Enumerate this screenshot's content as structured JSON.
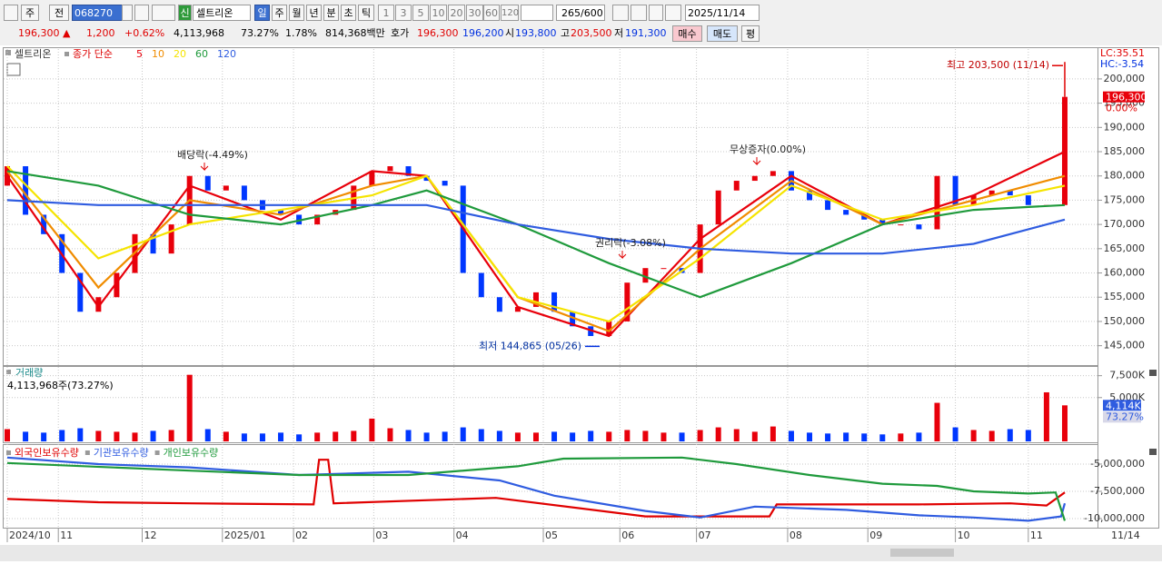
{
  "toolbar": {
    "market_buttons": [
      "주",
      "전"
    ],
    "code": "068270",
    "badge": "신",
    "name": "셀트리온",
    "period_buttons": [
      "일",
      "주",
      "월",
      "년",
      "분",
      "초",
      "틱"
    ],
    "intervals": [
      "1",
      "3",
      "5",
      "10",
      "20",
      "30",
      "60",
      "120"
    ],
    "count": "265",
    "max": "/600",
    "date": "2025/11/14"
  },
  "quote": {
    "price": "196,300",
    "arrow": "▲",
    "change": "1,200",
    "change_pct": "+0.62%",
    "volume": "4,113,968",
    "volume_ratio": "73.27%",
    "turnover": "1.78%",
    "amount": "814,368백만",
    "ask_label": "호가",
    "ask": "196,300",
    "bid": "196,200",
    "open_label": "시",
    "open": "193,800",
    "high_label": "고",
    "high": "203,500",
    "low_label": "저",
    "low": "191,300",
    "buy": "매수",
    "sell": "매도",
    "avg": "평"
  },
  "chart_data": [
    {
      "type": "candlestick",
      "name": "셀트리온",
      "ma_title": "종가 단순",
      "lc": "LC:35.51",
      "hc": "HC:-3.54",
      "xlim": [
        0,
        58.3
      ],
      "ylim": [
        141000,
        205600
      ],
      "grid": true,
      "yticks": [
        {
          "value": 145000,
          "label": "145,000"
        },
        {
          "value": 150000,
          "label": "150,000"
        },
        {
          "value": 155000,
          "label": "155,000"
        },
        {
          "value": 160000,
          "label": "160,000"
        },
        {
          "value": 165000,
          "label": "165,000"
        },
        {
          "value": 170000,
          "label": "170,000"
        },
        {
          "value": 175000,
          "label": "175,000"
        },
        {
          "value": 180000,
          "label": "180,000"
        },
        {
          "value": 185000,
          "label": "185,000"
        },
        {
          "value": 190000,
          "label": "190,000"
        },
        {
          "value": 195000,
          "label": "195,000"
        },
        {
          "value": 200000,
          "label": "200,000"
        }
      ],
      "color_up": "#e8000b",
      "color_down": "#0037ff",
      "open": [
        178000,
        182000,
        172000,
        168000,
        160000,
        152000,
        155000,
        160000,
        168000,
        164000,
        170000,
        180000,
        177000,
        178000,
        175000,
        173000,
        172000,
        170000,
        172000,
        173000,
        178000,
        181000,
        182000,
        180000,
        179000,
        178000,
        160000,
        155000,
        152000,
        153000,
        156000,
        152000,
        149000,
        147000,
        150000,
        158000,
        161000,
        161000,
        160000,
        170000,
        177000,
        179000,
        180000,
        181000,
        177000,
        175000,
        173000,
        172000,
        171000,
        170000,
        170000,
        169000,
        180000,
        174000,
        176000,
        177000,
        176000,
        174000,
        174000
      ],
      "close": [
        182000,
        172000,
        168000,
        160000,
        152000,
        155000,
        160000,
        168000,
        164000,
        170000,
        180000,
        177000,
        178000,
        175000,
        173000,
        172000,
        170000,
        172000,
        173000,
        178000,
        181000,
        182000,
        180000,
        179000,
        178000,
        160000,
        155000,
        152000,
        153000,
        156000,
        152000,
        149000,
        147000,
        150000,
        158000,
        161000,
        161000,
        160000,
        170000,
        177000,
        179000,
        180000,
        181000,
        177000,
        175000,
        173000,
        172000,
        171000,
        170000,
        170000,
        169000,
        180000,
        174000,
        176000,
        177000,
        176000,
        174000,
        174000,
        196300
      ],
      "series": [
        {
          "name": "5",
          "color": "#e8000b",
          "x": [
            0,
            5,
            10,
            15,
            20,
            23,
            28,
            33,
            38,
            43,
            48,
            53,
            58
          ],
          "values": [
            180000,
            153000,
            178000,
            171000,
            181000,
            180000,
            153000,
            147000,
            167000,
            180000,
            170000,
            176000,
            185000
          ]
        },
        {
          "name": "10",
          "color": "#f08c00",
          "x": [
            0,
            5,
            10,
            15,
            20,
            23,
            28,
            33,
            38,
            43,
            48,
            53,
            58
          ],
          "values": [
            181000,
            157000,
            175000,
            172000,
            178000,
            180000,
            155000,
            148000,
            165000,
            179000,
            170000,
            175000,
            180000
          ]
        },
        {
          "name": "20",
          "color": "#f5e400",
          "x": [
            0,
            5,
            10,
            15,
            20,
            23,
            28,
            33,
            38,
            43,
            48,
            53,
            58
          ],
          "values": [
            182000,
            163000,
            170000,
            173000,
            176000,
            180000,
            155000,
            150000,
            163000,
            178000,
            171000,
            174000,
            178000
          ]
        },
        {
          "name": "60",
          "color": "#1f9a3c",
          "x": [
            0,
            5,
            10,
            15,
            20,
            23,
            28,
            33,
            38,
            43,
            48,
            53,
            58
          ],
          "values": [
            181000,
            178000,
            172000,
            170000,
            174000,
            177000,
            170000,
            162000,
            155000,
            162000,
            170000,
            173000,
            174000
          ]
        },
        {
          "name": "120",
          "color": "#2f5ce0",
          "x": [
            0,
            5,
            10,
            15,
            20,
            23,
            28,
            33,
            38,
            43,
            48,
            53,
            58
          ],
          "values": [
            175000,
            174000,
            174000,
            174000,
            174000,
            174000,
            170000,
            167000,
            165000,
            164000,
            164000,
            166000,
            171000
          ]
        }
      ],
      "last_label": "196,300",
      "last_change": "0.00%",
      "high": {
        "label": "최고 203,500 (11/14)",
        "value": 203500
      },
      "low": {
        "label": "최저 144,865 (05/26)",
        "value": 144865
      },
      "events": [
        "배당락(-4.49%)",
        "무상증자(0.00%)",
        "권리락(-3.08%)"
      ]
    },
    {
      "type": "bar",
      "title": "거래량",
      "legend": "4,113,968주(73.27%)",
      "xlim": [
        0,
        58.3
      ],
      "ylim": [
        0,
        8500000
      ],
      "yticks": [
        {
          "value": 7500000,
          "label": "7,500K"
        },
        {
          "value": 5000000,
          "label": "5,000K"
        }
      ],
      "values": [
        1400000,
        1100000,
        1000000,
        1300000,
        1500000,
        1200000,
        1100000,
        1000000,
        1200000,
        1300000,
        7600000,
        1400000,
        1100000,
        900000,
        900000,
        1000000,
        800000,
        1000000,
        1100000,
        1200000,
        2600000,
        1500000,
        1300000,
        1000000,
        1100000,
        1600000,
        1400000,
        1200000,
        1000000,
        1000000,
        1100000,
        1000000,
        1200000,
        1100000,
        1300000,
        1200000,
        1000000,
        1000000,
        1300000,
        1600000,
        1400000,
        1100000,
        1700000,
        1200000,
        1000000,
        900000,
        1000000,
        900000,
        800000,
        900000,
        1000000,
        4400000,
        1600000,
        1300000,
        1200000,
        1400000,
        1300000,
        5600000,
        4113968
      ],
      "last_label": "4,114K",
      "last_ratio": "73.27%"
    },
    {
      "type": "line",
      "xlim": [
        0,
        58.3
      ],
      "ylim": [
        -10750000,
        -3420000
      ],
      "yticks": [
        {
          "value": -5000000,
          "label": "-5,000,000"
        },
        {
          "value": -7500000,
          "label": "-7,500,000"
        },
        {
          "value": -10000000,
          "label": "-10,000,000"
        }
      ],
      "series": [
        {
          "name": "외국인보유수량",
          "color": "#e00000",
          "x": [
            0,
            5,
            10,
            16.8,
            17.1,
            17.6,
            17.9,
            26.8,
            35,
            41.8,
            42.2,
            50,
            55,
            57,
            58
          ],
          "values": [
            -8200000,
            -8500000,
            -8600000,
            -8700000,
            -4600000,
            -4600000,
            -8600000,
            -8100000,
            -9800000,
            -9800000,
            -8700000,
            -8700000,
            -8600000,
            -8800000,
            -7600000
          ]
        },
        {
          "name": "기관보유수량",
          "color": "#2f5ce0",
          "x": [
            0,
            5,
            10,
            16,
            22,
            27,
            30,
            35,
            38,
            41,
            46,
            50,
            53,
            56,
            57.8,
            58
          ],
          "values": [
            -4400000,
            -5000000,
            -5300000,
            -6000000,
            -5700000,
            -6500000,
            -7900000,
            -9300000,
            -9900000,
            -8900000,
            -9200000,
            -9700000,
            -9900000,
            -10200000,
            -9800000,
            -8600000
          ]
        },
        {
          "name": "개인보유수량",
          "color": "#1f9a3c",
          "x": [
            0,
            10,
            16,
            22,
            28,
            30.5,
            37,
            40,
            44,
            48,
            51,
            53,
            56,
            57.5,
            58
          ],
          "values": [
            -4900000,
            -5600000,
            -6000000,
            -6000000,
            -5200000,
            -4500000,
            -4400000,
            -5000000,
            -6000000,
            -6800000,
            -7000000,
            -7500000,
            -7700000,
            -7600000,
            -10200000
          ]
        }
      ],
      "x_labels": [
        {
          "value": 0,
          "label": "2024/10"
        },
        {
          "value": 2.8,
          "label": "11"
        },
        {
          "value": 7.4,
          "label": "12"
        },
        {
          "value": 11.8,
          "label": "2025/01"
        },
        {
          "value": 15.7,
          "label": "02"
        },
        {
          "value": 20.1,
          "label": "03"
        },
        {
          "value": 24.5,
          "label": "04"
        },
        {
          "value": 29.4,
          "label": "05"
        },
        {
          "value": 33.6,
          "label": "06"
        },
        {
          "value": 37.8,
          "label": "07"
        },
        {
          "value": 42.8,
          "label": "08"
        },
        {
          "value": 47.2,
          "label": "09"
        },
        {
          "value": 52,
          "label": "10"
        },
        {
          "value": 56,
          "label": "11"
        }
      ],
      "end_label": "11/14"
    }
  ]
}
